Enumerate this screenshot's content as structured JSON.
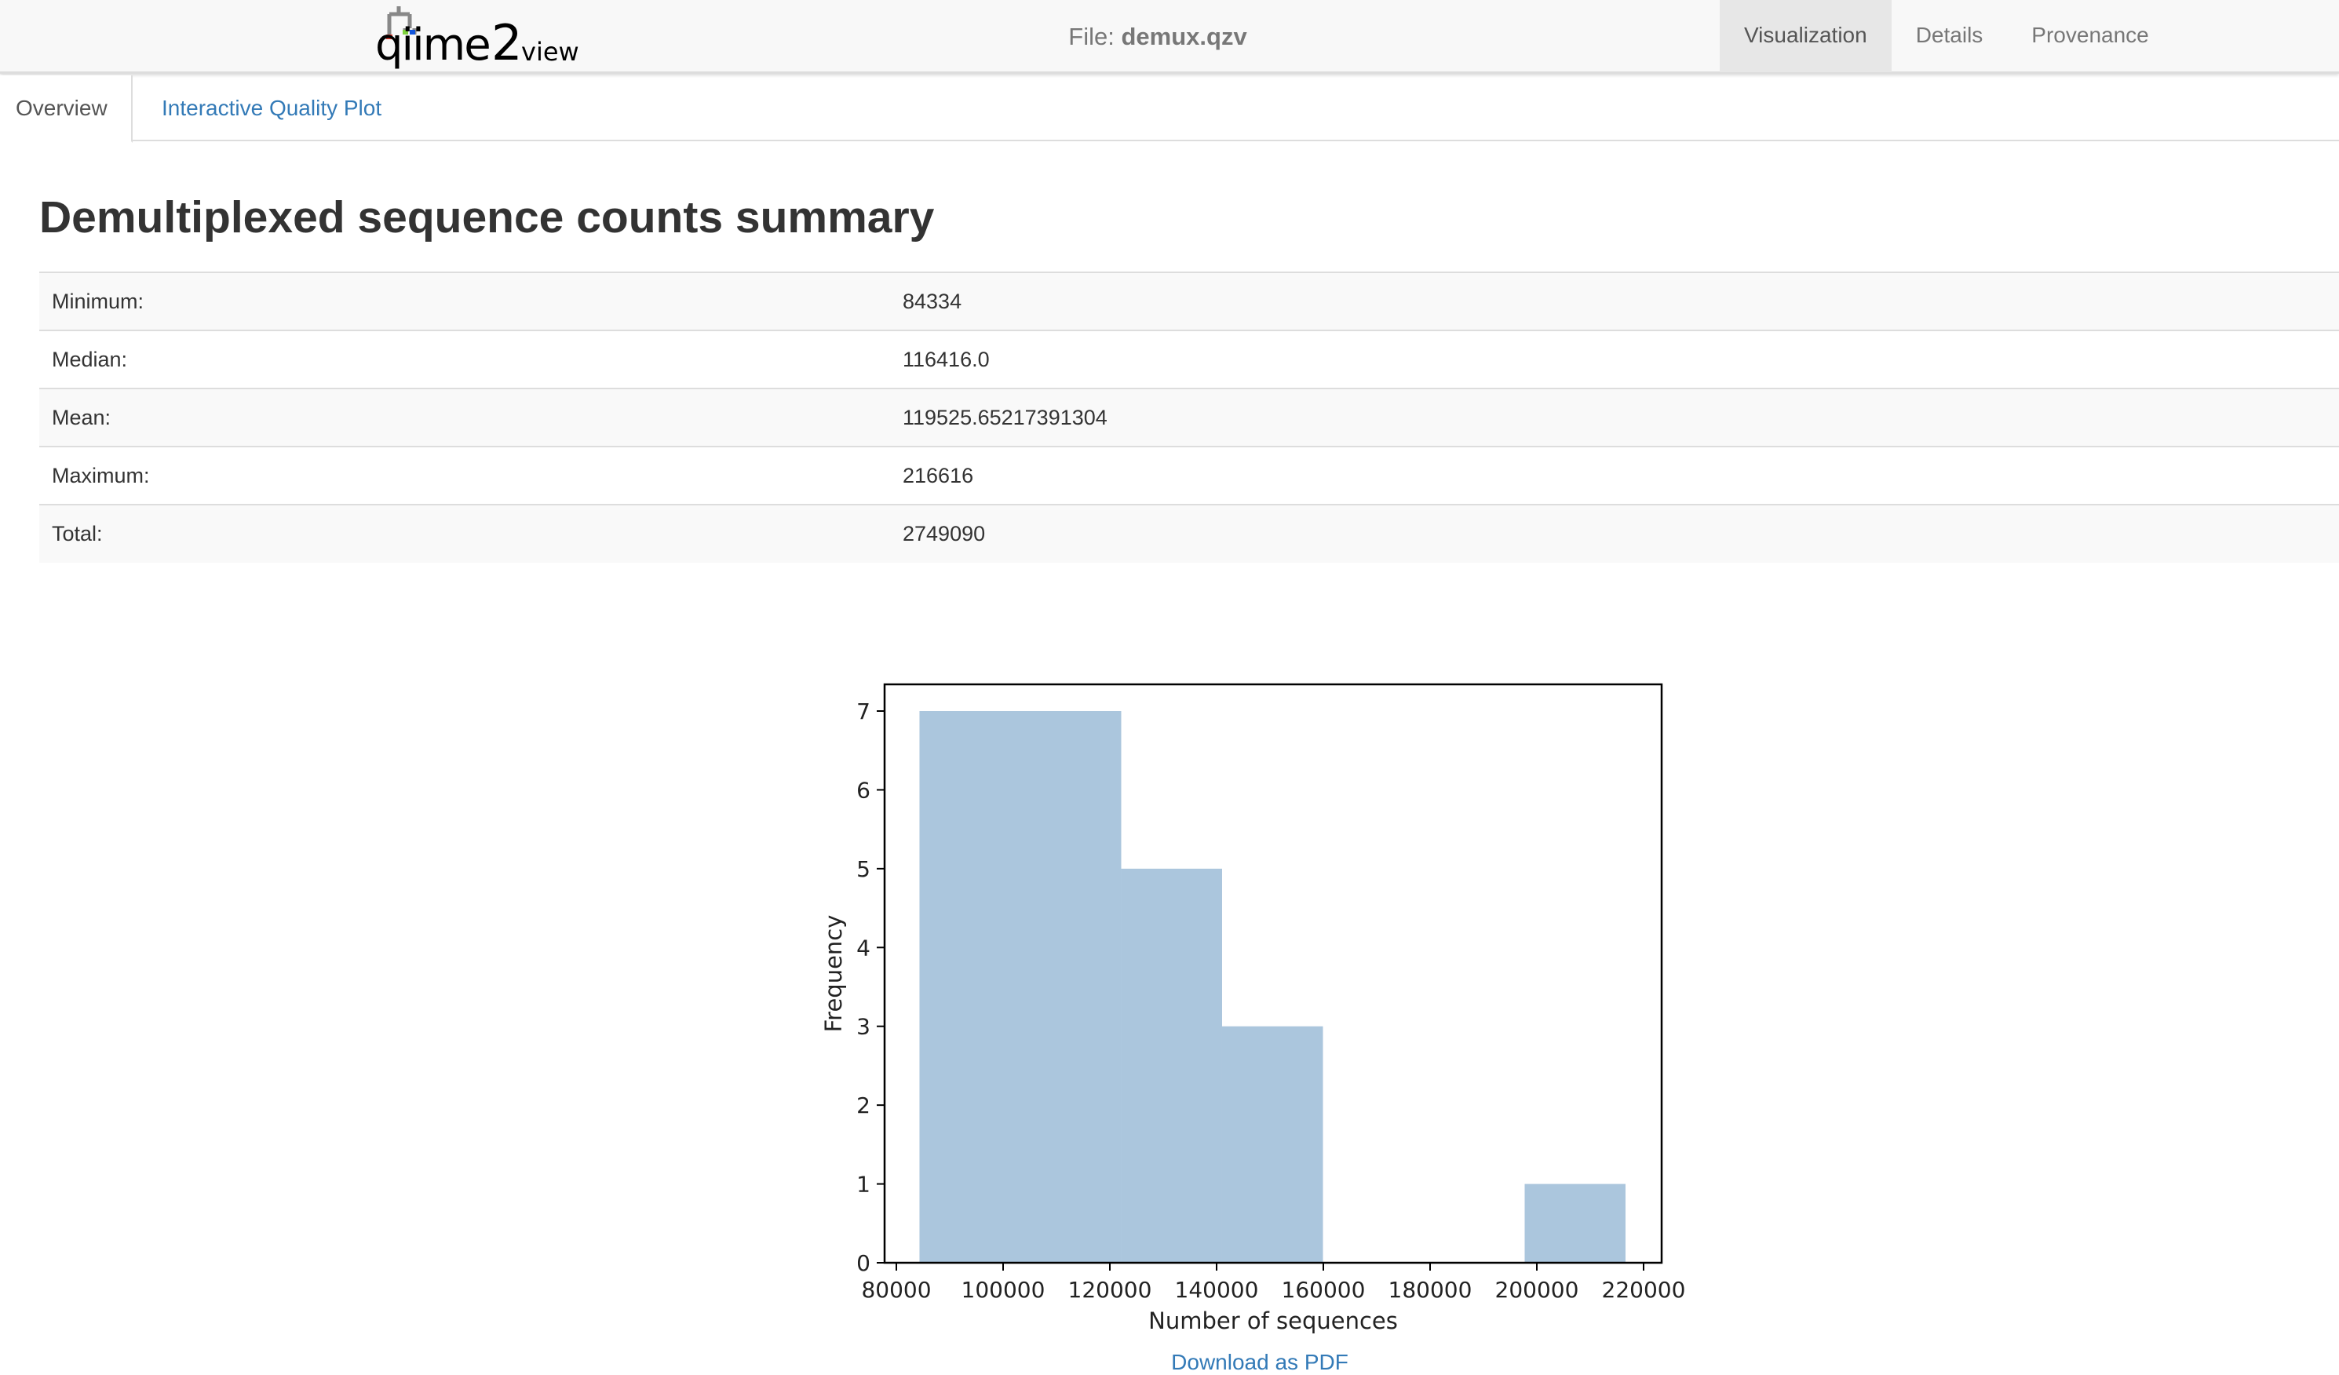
{
  "navbar": {
    "logo_text": "qiime2view",
    "file_label": "File:",
    "file_name": "demux.qzv",
    "tabs": [
      {
        "label": "Visualization",
        "active": true
      },
      {
        "label": "Details"
      },
      {
        "label": "Provenance"
      }
    ]
  },
  "tabs": [
    {
      "label": "Overview",
      "active": true
    },
    {
      "label": "Interactive Quality Plot"
    }
  ],
  "main": {
    "title": "Demultiplexed sequence counts summary",
    "summary": [
      {
        "label": "Minimum:",
        "value": "84334"
      },
      {
        "label": "Median:",
        "value": "116416.0"
      },
      {
        "label": "Mean:",
        "value": "119525.65217391304"
      },
      {
        "label": "Maximum:",
        "value": "216616"
      },
      {
        "label": "Total:",
        "value": "2749090"
      }
    ],
    "download_label": "Download as PDF"
  },
  "colors": {
    "bar": "#abc6dd",
    "link": "#337ab7",
    "logo_red": "#e8382b",
    "logo_green": "#7ed23c",
    "logo_blue": "#1155dd"
  },
  "chart_data": {
    "type": "bar",
    "subtype": "histogram",
    "bin_edges": [
      84334,
      103231.7,
      122129.4,
      141027.1,
      159924.9,
      178822.6,
      197720.3,
      216616
    ],
    "values": [
      7,
      7,
      5,
      3,
      0,
      0,
      1
    ],
    "xlabel": "Number of sequences",
    "ylabel": "Frequency",
    "xlim": [
      76000,
      224000
    ],
    "ylim": [
      0,
      7.35
    ],
    "xticks": [
      80000,
      100000,
      120000,
      140000,
      160000,
      180000,
      200000,
      220000
    ],
    "yticks": [
      0,
      1,
      2,
      3,
      4,
      5,
      6,
      7
    ],
    "grid": false
  }
}
